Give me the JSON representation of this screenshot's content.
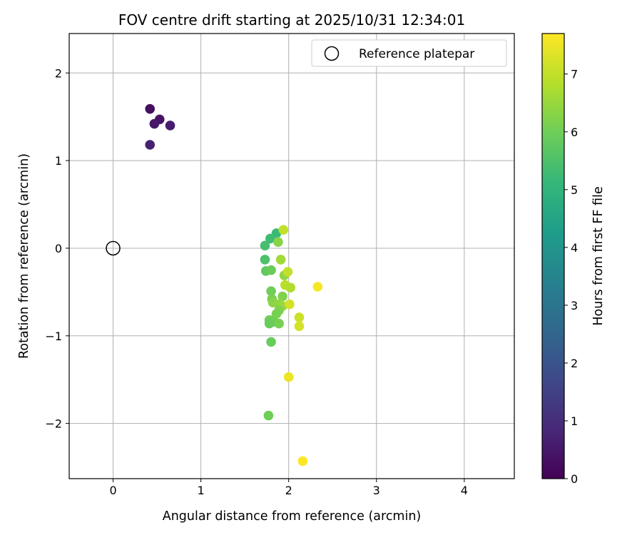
{
  "chart_data": {
    "type": "scatter",
    "title": "FOV centre drift starting at 2025/10/31 12:34:01",
    "xlabel": "Angular distance from reference (arcmin)",
    "ylabel": "Rotation from reference (arcmin)",
    "xlim": [
      -0.5,
      4.57
    ],
    "ylim": [
      -2.63,
      2.45
    ],
    "xticks": [
      0,
      1,
      2,
      3,
      4
    ],
    "yticks": [
      2,
      1,
      0,
      -1,
      -2
    ],
    "xtick_labels": [
      "0",
      "1",
      "2",
      "3",
      "4"
    ],
    "ytick_labels": [
      "2",
      "1",
      "0",
      "−1",
      "−2"
    ],
    "grid": true,
    "legend": {
      "location": "top-right",
      "label": "Reference platepar"
    },
    "reference_point": {
      "x": 0,
      "y": 0
    },
    "colorbar": {
      "label": "Hours from first FF file",
      "range": [
        0,
        7.7
      ],
      "ticks": [
        0,
        1,
        2,
        3,
        4,
        5,
        6,
        7
      ],
      "tick_labels": [
        "0",
        "1",
        "2",
        "3",
        "4",
        "5",
        "6",
        "7"
      ],
      "colormap": "viridis",
      "stops": [
        "#440154",
        "#482878",
        "#3e4989",
        "#31688e",
        "#26828e",
        "#1f9e89",
        "#35b779",
        "#6ece58",
        "#b5de2b",
        "#fde725"
      ]
    },
    "points": [
      {
        "x": 0.42,
        "y": 1.59,
        "t": 0.3
      },
      {
        "x": 0.53,
        "y": 1.47,
        "t": 0.4
      },
      {
        "x": 0.47,
        "y": 1.42,
        "t": 0.5
      },
      {
        "x": 0.65,
        "y": 1.4,
        "t": 0.6
      },
      {
        "x": 0.42,
        "y": 1.18,
        "t": 0.7
      },
      {
        "x": 1.86,
        "y": 0.17,
        "t": 5.2
      },
      {
        "x": 1.79,
        "y": 0.11,
        "t": 5.3
      },
      {
        "x": 1.73,
        "y": 0.03,
        "t": 5.4
      },
      {
        "x": 1.88,
        "y": 0.07,
        "t": 6.3
      },
      {
        "x": 1.73,
        "y": -0.13,
        "t": 5.5
      },
      {
        "x": 1.74,
        "y": -0.26,
        "t": 5.8
      },
      {
        "x": 1.8,
        "y": -0.25,
        "t": 5.9
      },
      {
        "x": 1.94,
        "y": 0.21,
        "t": 7.0
      },
      {
        "x": 1.91,
        "y": -0.13,
        "t": 6.6
      },
      {
        "x": 1.95,
        "y": -0.31,
        "t": 6.4
      },
      {
        "x": 1.99,
        "y": -0.27,
        "t": 7.0
      },
      {
        "x": 1.96,
        "y": -0.42,
        "t": 6.9
      },
      {
        "x": 2.02,
        "y": -0.45,
        "t": 6.8
      },
      {
        "x": 1.8,
        "y": -0.49,
        "t": 6.0
      },
      {
        "x": 1.93,
        "y": -0.55,
        "t": 6.2
      },
      {
        "x": 1.81,
        "y": -0.58,
        "t": 6.1
      },
      {
        "x": 1.82,
        "y": -0.62,
        "t": 6.3
      },
      {
        "x": 1.88,
        "y": -0.64,
        "t": 6.4
      },
      {
        "x": 1.93,
        "y": -0.66,
        "t": 6.5
      },
      {
        "x": 2.01,
        "y": -0.64,
        "t": 7.2
      },
      {
        "x": 1.89,
        "y": -0.71,
        "t": 6.2
      },
      {
        "x": 1.86,
        "y": -0.75,
        "t": 6.1
      },
      {
        "x": 1.78,
        "y": -0.82,
        "t": 6.0
      },
      {
        "x": 1.83,
        "y": -0.84,
        "t": 6.0
      },
      {
        "x": 1.89,
        "y": -0.86,
        "t": 6.1
      },
      {
        "x": 1.78,
        "y": -0.86,
        "t": 5.9
      },
      {
        "x": 2.12,
        "y": -0.79,
        "t": 7.1
      },
      {
        "x": 2.12,
        "y": -0.89,
        "t": 7.2
      },
      {
        "x": 1.8,
        "y": -1.07,
        "t": 5.9
      },
      {
        "x": 2.33,
        "y": -0.44,
        "t": 7.6
      },
      {
        "x": 2.0,
        "y": -1.47,
        "t": 7.5
      },
      {
        "x": 1.77,
        "y": -1.91,
        "t": 6.0
      },
      {
        "x": 2.16,
        "y": -2.43,
        "t": 7.7
      }
    ]
  }
}
